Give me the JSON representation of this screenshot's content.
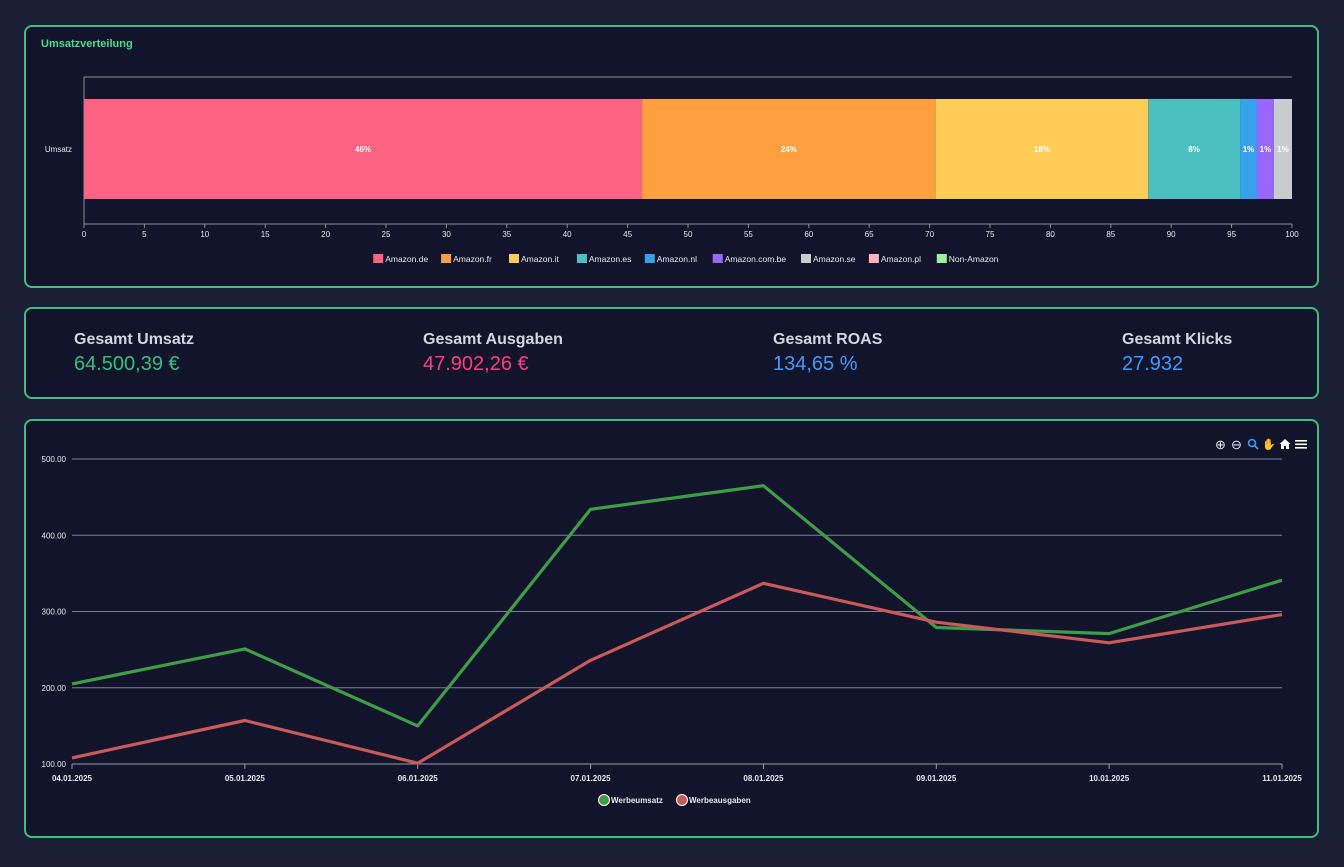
{
  "distribution": {
    "title": "Umsatzverteilung",
    "chart_data": {
      "type": "bar",
      "orientation": "horizontal-stacked",
      "categories": [
        "Umsatz"
      ],
      "series": [
        {
          "name": "Amazon.de",
          "values": [
            46.2
          ],
          "label": "46%",
          "color": "#ff6384"
        },
        {
          "name": "Amazon.fr",
          "values": [
            24.3
          ],
          "label": "24%",
          "color": "#ff9f40"
        },
        {
          "name": "Amazon.it",
          "values": [
            17.6
          ],
          "label": "18%",
          "color": "#ffcd56"
        },
        {
          "name": "Amazon.es",
          "values": [
            7.6
          ],
          "label": "8%",
          "color": "#4bc0c0"
        },
        {
          "name": "Amazon.nl",
          "values": [
            1.4
          ],
          "label": "1%",
          "color": "#36a2eb"
        },
        {
          "name": "Amazon.com.be",
          "values": [
            1.4
          ],
          "label": "1%",
          "color": "#9966ff"
        },
        {
          "name": "Amazon.se",
          "values": [
            1.5
          ],
          "label": "1%",
          "color": "#c9cbcf"
        },
        {
          "name": "Amazon.pl",
          "values": [
            0
          ],
          "label": "",
          "color": "#ffb1c1"
        },
        {
          "name": "Non-Amazon",
          "values": [
            0
          ],
          "label": "",
          "color": "#9ef09e"
        }
      ],
      "xlim": [
        0,
        100
      ],
      "xticks": [
        0,
        5,
        10,
        15,
        20,
        25,
        30,
        35,
        40,
        45,
        50,
        55,
        60,
        65,
        70,
        75,
        80,
        85,
        90,
        95,
        100
      ],
      "legend_position": "bottom"
    }
  },
  "stats": [
    {
      "label": "Gesamt Umsatz",
      "value": "64.500,39 €",
      "color": "#2ec27e"
    },
    {
      "label": "Gesamt Ausgaben",
      "value": "47.902,26 €",
      "color": "#ff3d7f"
    },
    {
      "label": "Gesamt ROAS",
      "value": "134,65 %",
      "color": "#3a9cff"
    },
    {
      "label": "Gesamt Klicks",
      "value": "27.932",
      "color": "#3a9cff"
    }
  ],
  "toolbar": {
    "icons": [
      "zoom-in-icon",
      "zoom-out-icon",
      "magnifier-icon",
      "pan-hand-icon",
      "home-icon",
      "menu-icon"
    ],
    "glyphs": [
      "⊕",
      "⊖",
      "🔍",
      "✋",
      "⌂",
      "☰"
    ]
  },
  "timeline": {
    "chart_data": {
      "type": "line",
      "x": [
        "04.01.2025",
        "05.01.2025",
        "06.01.2025",
        "07.01.2025",
        "08.01.2025",
        "09.01.2025",
        "10.01.2025",
        "11.01.2025"
      ],
      "series": [
        {
          "name": "Werbeumsatz",
          "values": [
            205,
            251,
            150,
            434,
            465,
            279,
            271,
            341
          ],
          "color": "#3e9e47"
        },
        {
          "name": "Werbeausgaben",
          "values": [
            108,
            157,
            101,
            236,
            337,
            286,
            259,
            296
          ],
          "color": "#c85a5a"
        }
      ],
      "ylim": [
        100,
        500
      ],
      "yticks": [
        "100.00",
        "200.00",
        "300.00",
        "400.00",
        "500.00"
      ],
      "grid": true,
      "legend_position": "bottom"
    }
  }
}
